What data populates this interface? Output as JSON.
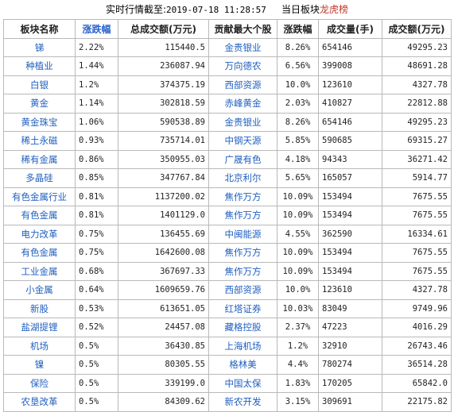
{
  "header": {
    "prefix": "实时行情截至:",
    "datetime": "2019-07-18 11:28:57",
    "suffix_plain": "当日板块",
    "suffix_highlight": "龙虎榜"
  },
  "columns": [
    "板块名称",
    "涨跌幅",
    "总成交额(万元)",
    "贡献最大个股",
    "涨跌幅",
    "成交量(手)",
    "成交额(万元)"
  ],
  "rows": [
    [
      "锑",
      "2.22%",
      "115440.5",
      "金贵银业",
      "8.26%",
      "654146",
      "49295.23"
    ],
    [
      "种植业",
      "1.44%",
      "236087.94",
      "万向德农",
      "6.56%",
      "399008",
      "48691.28"
    ],
    [
      "白银",
      "1.2%",
      "374375.19",
      "西部资源",
      "10.0%",
      "123610",
      "4327.78"
    ],
    [
      "黄金",
      "1.14%",
      "302818.59",
      "赤峰黄金",
      "2.03%",
      "410827",
      "22812.88"
    ],
    [
      "黄金珠宝",
      "1.06%",
      "590538.89",
      "金贵银业",
      "8.26%",
      "654146",
      "49295.23"
    ],
    [
      "稀土永磁",
      "0.93%",
      "735714.01",
      "中钢天源",
      "5.85%",
      "590685",
      "69315.27"
    ],
    [
      "稀有金属",
      "0.86%",
      "350955.03",
      "广晟有色",
      "4.18%",
      "94343",
      "36271.42"
    ],
    [
      "多晶硅",
      "0.85%",
      "347767.84",
      "北京利尔",
      "5.65%",
      "165057",
      "5914.77"
    ],
    [
      "有色金属行业",
      "0.81%",
      "1137200.02",
      "焦作万方",
      "10.09%",
      "153494",
      "7675.55"
    ],
    [
      "有色金属",
      "0.81%",
      "1401129.0",
      "焦作万方",
      "10.09%",
      "153494",
      "7675.55"
    ],
    [
      "电力改革",
      "0.75%",
      "136455.69",
      "中闽能源",
      "4.55%",
      "362590",
      "16334.61"
    ],
    [
      "有色金属",
      "0.75%",
      "1642600.08",
      "焦作万方",
      "10.09%",
      "153494",
      "7675.55"
    ],
    [
      "工业金属",
      "0.68%",
      "367697.33",
      "焦作万方",
      "10.09%",
      "153494",
      "7675.55"
    ],
    [
      "小金属",
      "0.64%",
      "1609659.76",
      "西部资源",
      "10.0%",
      "123610",
      "4327.78"
    ],
    [
      "新股",
      "0.53%",
      "613651.05",
      "红塔证券",
      "10.03%",
      "83049",
      "9749.96"
    ],
    [
      "盐湖提锂",
      "0.52%",
      "24457.08",
      "藏格控股",
      "2.37%",
      "47223",
      "4016.29"
    ],
    [
      "机场",
      "0.5%",
      "36430.85",
      "上海机场",
      "1.2%",
      "32910",
      "26743.46"
    ],
    [
      "镍",
      "0.5%",
      "80305.55",
      "格林美",
      "4.4%",
      "780274",
      "36514.28"
    ],
    [
      "保险",
      "0.5%",
      "339199.0",
      "中国太保",
      "1.83%",
      "170205",
      "65842.0"
    ],
    [
      "农垦改革",
      "0.5%",
      "84309.62",
      "新农开发",
      "3.15%",
      "309691",
      "22175.82"
    ]
  ]
}
